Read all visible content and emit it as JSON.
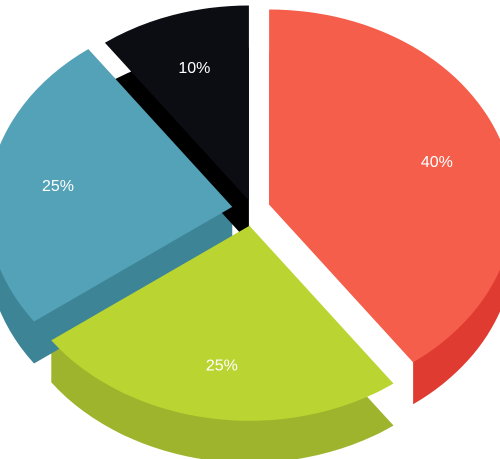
{
  "chart_data": {
    "type": "pie",
    "style": "3d-exploded",
    "categories": [
      "",
      "",
      "",
      ""
    ],
    "values": [
      40,
      25,
      25,
      10
    ],
    "labels": [
      "40%",
      "25%",
      "25%",
      "10%"
    ],
    "colors": {
      "top": [
        "#f55e4b",
        "#bad531",
        "#53a2b7",
        "#0b0d13"
      ],
      "side": [
        "#e03b31",
        "#9fb42d",
        "#3d8496",
        "#000000"
      ]
    },
    "title": "",
    "legend": "none"
  }
}
